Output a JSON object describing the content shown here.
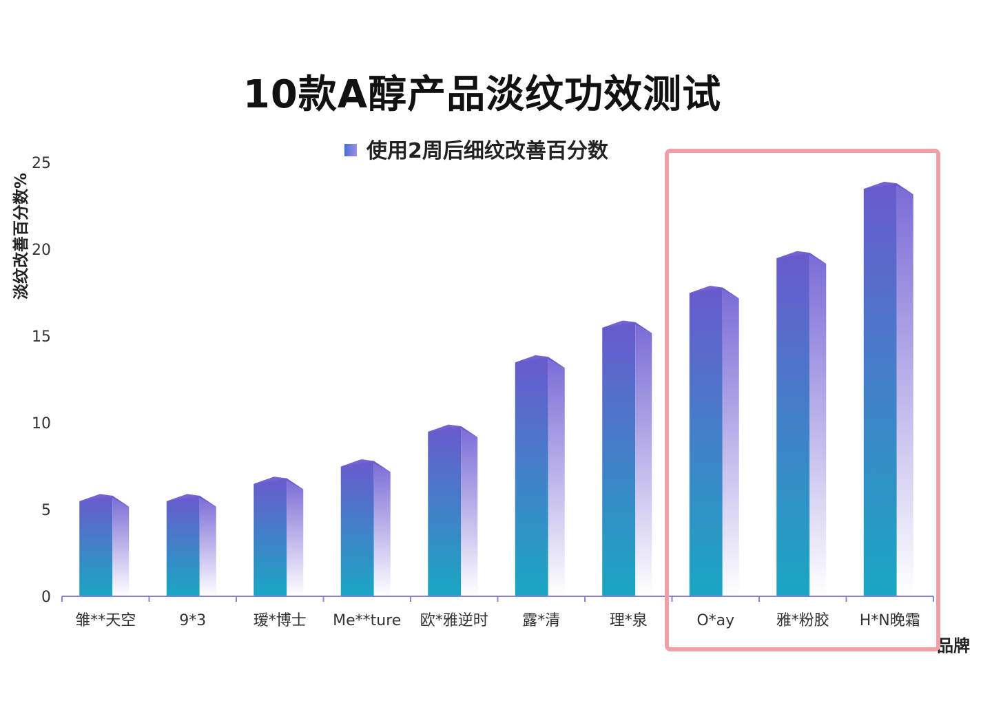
{
  "chart_data": {
    "type": "bar",
    "title": "10款A醇产品淡纹功效测试",
    "xlabel": "品牌",
    "ylabel": "淡纹改善百分数%",
    "categories": [
      "雏**天空",
      "9*3",
      "瑷*博士",
      "Me**ture",
      "欧*雅逆时",
      "露*清",
      "理*泉",
      "O*ay",
      "雅*粉胶",
      "H*N晚霜"
    ],
    "series": [
      {
        "name": "使用2周后细纹改善百分数",
        "values": [
          5.8,
          5.8,
          6.8,
          7.8,
          9.8,
          13.8,
          15.8,
          17.8,
          19.8,
          23.8
        ]
      }
    ],
    "ylim": [
      0,
      25
    ],
    "yticks": [
      0,
      5,
      10,
      15,
      20,
      25
    ],
    "legend_position": "top",
    "grid": false,
    "highlighted_categories": [
      "O*ay",
      "雅*粉胶",
      "H*N晚霜"
    ],
    "colors": {
      "bar_bottom": "#1aa6c4",
      "bar_top": "#6a5ccf",
      "bar_side_top": "#7d6fda",
      "axis": "#8a80d8",
      "highlight_border": "#f0a0a6"
    }
  }
}
